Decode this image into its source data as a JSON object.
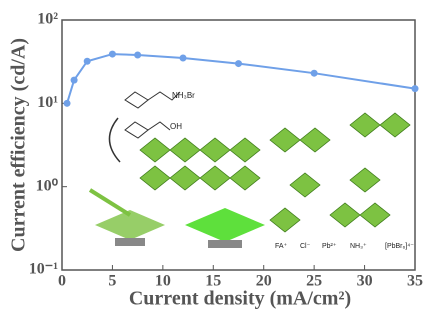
{
  "chart_data": {
    "type": "line",
    "x_label": "Current density (mA/cm²)",
    "y_label": "Current efficiency (cd/A)",
    "x": [
      0.5,
      1.2,
      2.5,
      5,
      7.5,
      12,
      17.5,
      25,
      35
    ],
    "series": [
      {
        "color": "#6fa0e8",
        "values": [
          10,
          19,
          32,
          39,
          38,
          35,
          30,
          23,
          15
        ]
      }
    ],
    "xlim": [
      0,
      35
    ],
    "xticks": [
      0,
      5,
      10,
      15,
      20,
      25,
      30,
      35
    ],
    "ylim": [
      0.1,
      100
    ],
    "yscale": "log",
    "yticks": [
      {
        "value": 0.1,
        "label": "10⁻¹"
      },
      {
        "value": 1,
        "label": "10⁰"
      },
      {
        "value": 10,
        "label": "10¹"
      },
      {
        "value": 100,
        "label": "10²"
      }
    ],
    "annotations": [
      "NH₃Br",
      "OH",
      "FA⁺",
      "Cl⁻",
      "Pb²⁺",
      "NH₃⁺",
      "[PbBr₆]⁴⁻"
    ]
  }
}
